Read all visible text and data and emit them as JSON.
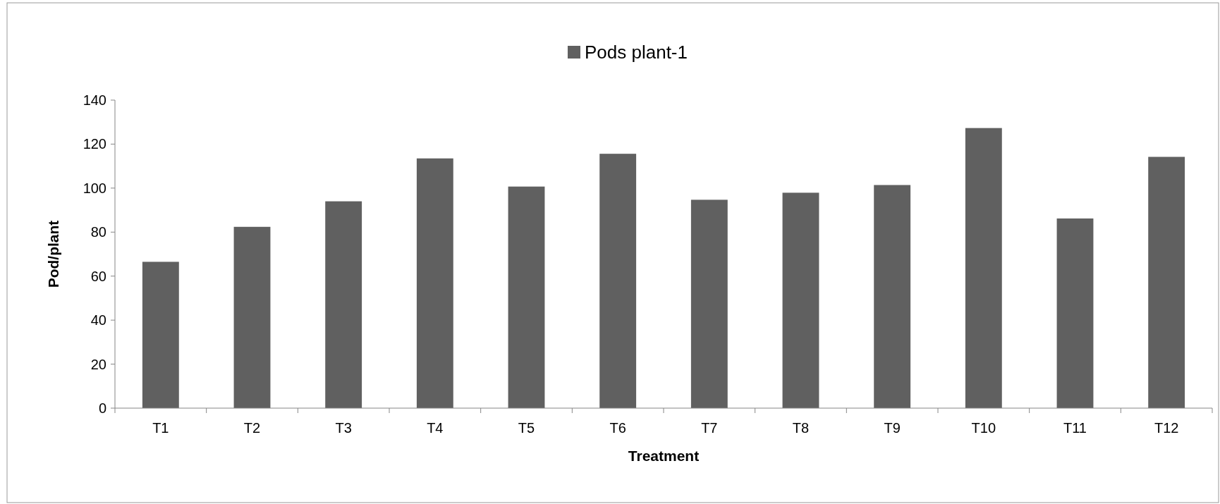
{
  "chart_data": {
    "type": "bar",
    "xlabel": "Treatment",
    "ylabel": "Pod/plant",
    "categories": [
      "T1",
      "T2",
      "T3",
      "T4",
      "T5",
      "T6",
      "T7",
      "T8",
      "T9",
      "T10",
      "T11",
      "T12"
    ],
    "series": [
      {
        "name": "Pods plant-1",
        "color": "#606060",
        "values": [
          66.5,
          82.4,
          94.0,
          113.5,
          100.7,
          115.6,
          94.7,
          97.9,
          101.4,
          127.3,
          86.2,
          114.2
        ]
      }
    ],
    "ylim": [
      0,
      140
    ],
    "yticks": [
      0,
      20,
      40,
      60,
      80,
      100,
      120,
      140
    ],
    "grid": false,
    "legend": "top"
  }
}
